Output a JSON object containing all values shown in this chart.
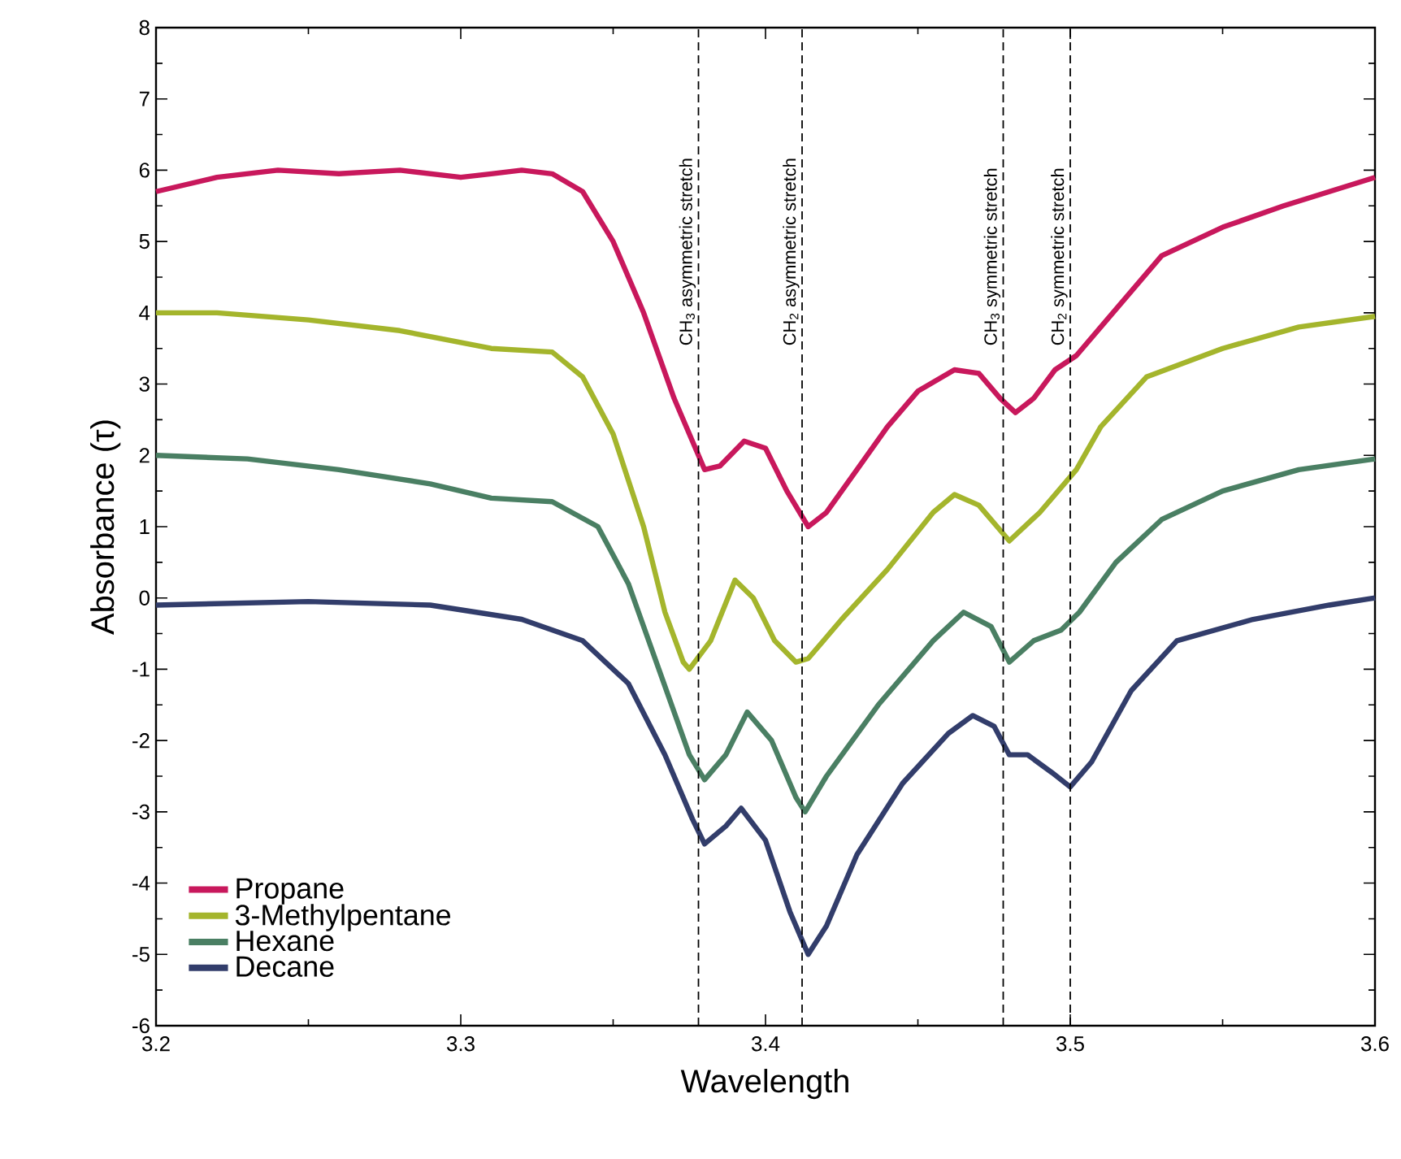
{
  "chart_data": {
    "type": "line",
    "xlabel": "Wavelength",
    "ylabel": "Absorbance (τ)",
    "xlim": [
      3.2,
      3.6
    ],
    "xticks": [
      3.2,
      3.3,
      3.4,
      3.5,
      3.6
    ],
    "ylim": [
      -6,
      8
    ],
    "yticks": [
      -6,
      -5,
      -4,
      -3,
      -2,
      -1,
      0,
      1,
      2,
      3,
      4,
      5,
      6,
      7,
      8
    ],
    "legend": "bottom left",
    "series": [
      {
        "name": "Propane",
        "color": "#c8185c",
        "x": [
          3.2,
          3.22,
          3.24,
          3.26,
          3.28,
          3.3,
          3.31,
          3.32,
          3.33,
          3.34,
          3.35,
          3.36,
          3.37,
          3.38,
          3.385,
          3.393,
          3.4,
          3.407,
          3.414,
          3.42,
          3.43,
          3.44,
          3.45,
          3.462,
          3.47,
          3.477,
          3.482,
          3.488,
          3.495,
          3.502,
          3.51,
          3.52,
          3.53,
          3.55,
          3.57,
          3.6
        ],
        "values": [
          5.7,
          5.9,
          6.0,
          5.95,
          6.0,
          5.9,
          5.95,
          6.0,
          5.95,
          5.7,
          5.0,
          4.0,
          2.8,
          1.8,
          1.85,
          2.2,
          2.1,
          1.5,
          1.0,
          1.2,
          1.8,
          2.4,
          2.9,
          3.2,
          3.15,
          2.8,
          2.6,
          2.8,
          3.2,
          3.4,
          3.8,
          4.3,
          4.8,
          5.2,
          5.5,
          5.9
        ]
      },
      {
        "name": "3-Methylpentane",
        "color": "#a4b52c",
        "x": [
          3.2,
          3.22,
          3.25,
          3.28,
          3.31,
          3.33,
          3.34,
          3.35,
          3.36,
          3.367,
          3.373,
          3.375,
          3.382,
          3.39,
          3.396,
          3.403,
          3.41,
          3.414,
          3.425,
          3.44,
          3.455,
          3.462,
          3.47,
          3.48,
          3.49,
          3.502,
          3.51,
          3.525,
          3.55,
          3.575,
          3.6
        ],
        "values": [
          4.0,
          4.0,
          3.9,
          3.75,
          3.5,
          3.45,
          3.1,
          2.3,
          1.0,
          -0.2,
          -0.9,
          -1.0,
          -0.6,
          0.25,
          0.0,
          -0.6,
          -0.9,
          -0.85,
          -0.3,
          0.4,
          1.2,
          1.45,
          1.3,
          0.8,
          1.2,
          1.8,
          2.4,
          3.1,
          3.5,
          3.8,
          3.95
        ]
      },
      {
        "name": "Hexane",
        "color": "#4a7f63",
        "x": [
          3.2,
          3.23,
          3.26,
          3.29,
          3.31,
          3.33,
          3.345,
          3.355,
          3.365,
          3.375,
          3.38,
          3.387,
          3.394,
          3.402,
          3.41,
          3.413,
          3.42,
          3.437,
          3.455,
          3.465,
          3.474,
          3.48,
          3.488,
          3.497,
          3.503,
          3.515,
          3.53,
          3.55,
          3.575,
          3.6
        ],
        "values": [
          2.0,
          1.95,
          1.8,
          1.6,
          1.4,
          1.35,
          1.0,
          0.2,
          -1.0,
          -2.2,
          -2.55,
          -2.2,
          -1.6,
          -2.0,
          -2.8,
          -3.0,
          -2.5,
          -1.5,
          -0.6,
          -0.2,
          -0.4,
          -0.9,
          -0.6,
          -0.45,
          -0.2,
          0.5,
          1.1,
          1.5,
          1.8,
          1.95
        ]
      },
      {
        "name": "Decane",
        "color": "#323d6b",
        "x": [
          3.2,
          3.25,
          3.29,
          3.32,
          3.34,
          3.355,
          3.367,
          3.376,
          3.38,
          3.387,
          3.392,
          3.4,
          3.408,
          3.414,
          3.42,
          3.43,
          3.445,
          3.46,
          3.468,
          3.475,
          3.48,
          3.486,
          3.494,
          3.5,
          3.507,
          3.52,
          3.535,
          3.56,
          3.585,
          3.6
        ],
        "values": [
          -0.1,
          -0.05,
          -0.1,
          -0.3,
          -0.6,
          -1.2,
          -2.2,
          -3.1,
          -3.45,
          -3.2,
          -2.95,
          -3.4,
          -4.4,
          -5.0,
          -4.6,
          -3.6,
          -2.6,
          -1.9,
          -1.65,
          -1.8,
          -2.2,
          -2.2,
          -2.45,
          -2.65,
          -2.3,
          -1.3,
          -0.6,
          -0.3,
          -0.1,
          0.0
        ]
      }
    ],
    "ref_lines": [
      {
        "axis": "x",
        "value": 3.378,
        "label": "CH$_{3}$ asymmetric stretch",
        "color": "#000000",
        "line_style": "dashed"
      },
      {
        "axis": "x",
        "value": 3.412,
        "label": "CH$_{2}$ asymmetric stretch",
        "color": "#000000",
        "line_style": "dashed"
      },
      {
        "axis": "x",
        "value": 3.478,
        "label": "CH$_{3}$ symmetric stretch",
        "color": "#000000",
        "line_style": "dashed"
      },
      {
        "axis": "x",
        "value": 3.5,
        "label": "CH$_{2}$ symmetric stretch",
        "color": "#000000",
        "line_style": "dashed"
      }
    ]
  }
}
